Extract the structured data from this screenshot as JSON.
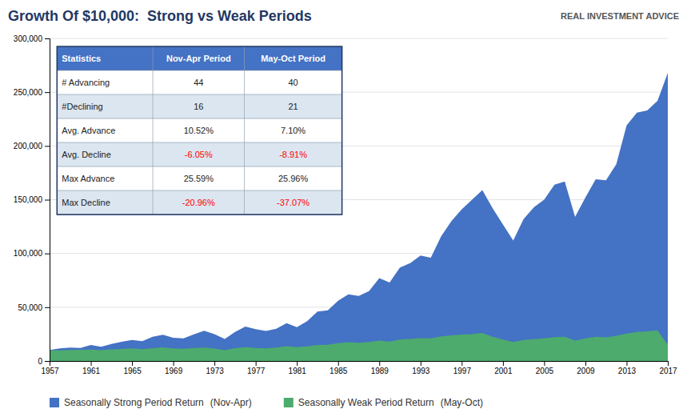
{
  "chart_data": {
    "type": "area",
    "title": "Growth Of $10,000:  Strong vs Weak Periods",
    "annotations": [
      "REAL INVESTMENT ADVICE"
    ],
    "x": [
      1957,
      1958,
      1959,
      1960,
      1961,
      1962,
      1963,
      1964,
      1965,
      1966,
      1967,
      1968,
      1969,
      1970,
      1971,
      1972,
      1973,
      1974,
      1975,
      1976,
      1977,
      1978,
      1979,
      1980,
      1981,
      1982,
      1983,
      1984,
      1985,
      1986,
      1987,
      1988,
      1989,
      1990,
      1991,
      1992,
      1993,
      1994,
      1995,
      1996,
      1997,
      1998,
      1999,
      2000,
      2001,
      2002,
      2003,
      2004,
      2005,
      2006,
      2007,
      2008,
      2009,
      2010,
      2011,
      2012,
      2013,
      2014,
      2015,
      2016,
      2017
    ],
    "xlim": [
      1957,
      2017
    ],
    "xticks": [
      1957,
      1961,
      1965,
      1969,
      1973,
      1977,
      1981,
      1985,
      1989,
      1993,
      1997,
      2001,
      2005,
      2009,
      2013,
      2017
    ],
    "ylim": [
      0,
      300000
    ],
    "yticks": [
      0,
      {
        "value": 50000,
        "label": "50,000"
      },
      {
        "value": 100000,
        "label": "100,000"
      },
      {
        "value": 150000,
        "label": "150,000"
      },
      {
        "value": 200000,
        "label": "200,000"
      },
      {
        "value": 250000,
        "label": "250,000"
      },
      {
        "value": 300000,
        "label": "300,000"
      }
    ],
    "grid": true,
    "legend": "bottom",
    "series": [
      {
        "name": "Seasonally Strong Period Return",
        "period": "(Nov-Apr)",
        "color": "#4472c4",
        "values": [
          10200,
          11800,
          12400,
          12100,
          14800,
          13200,
          15900,
          17800,
          19600,
          18500,
          22500,
          24300,
          21500,
          21000,
          24800,
          28100,
          25000,
          20500,
          27000,
          32000,
          29500,
          28000,
          30000,
          35200,
          31500,
          37000,
          46000,
          47000,
          56000,
          62000,
          60500,
          65000,
          77000,
          73000,
          87000,
          91000,
          98000,
          96000,
          116000,
          130000,
          141000,
          150000,
          159000,
          142000,
          127000,
          112000,
          132000,
          143000,
          150000,
          164000,
          167000,
          134000,
          152000,
          169000,
          168000,
          183000,
          219000,
          231000,
          233000,
          242000,
          268000
        ]
      },
      {
        "name": "Seasonally Weak Period Return",
        "period": "(May-Oct)",
        "color": "#4dab6d",
        "values": [
          9800,
          9900,
          10200,
          10400,
          10600,
          10100,
          10800,
          11200,
          11800,
          10900,
          12000,
          12700,
          11700,
          11400,
          12100,
          12500,
          11500,
          10100,
          11900,
          12900,
          12100,
          11700,
          12500,
          13800,
          12800,
          13500,
          14800,
          15000,
          16500,
          17500,
          17000,
          17600,
          18900,
          18000,
          20000,
          20500,
          21200,
          21000,
          22800,
          23800,
          24500,
          25000,
          26000,
          22500,
          20000,
          17700,
          19500,
          20300,
          21000,
          22200,
          22500,
          19000,
          21000,
          22500,
          22000,
          23500,
          25500,
          27000,
          27500,
          28500,
          15000
        ]
      }
    ],
    "table": {
      "columns": [
        "Statistics",
        "Nov-Apr Period",
        "May-Oct Period"
      ],
      "rows": [
        [
          "# Advancing",
          "44",
          "40"
        ],
        [
          "#Declining",
          "16",
          "21"
        ],
        [
          "Avg. Advance",
          "10.52%",
          "7.10%"
        ],
        [
          "Avg. Decline",
          "-6.05%",
          "-8.91%"
        ],
        [
          "Max Advance",
          "25.59%",
          "25.96%"
        ],
        [
          "Max Decline",
          "-20.96%",
          "-37.07%"
        ]
      ],
      "highlight_rows": [
        3,
        5
      ],
      "highlight_color": "red"
    }
  }
}
